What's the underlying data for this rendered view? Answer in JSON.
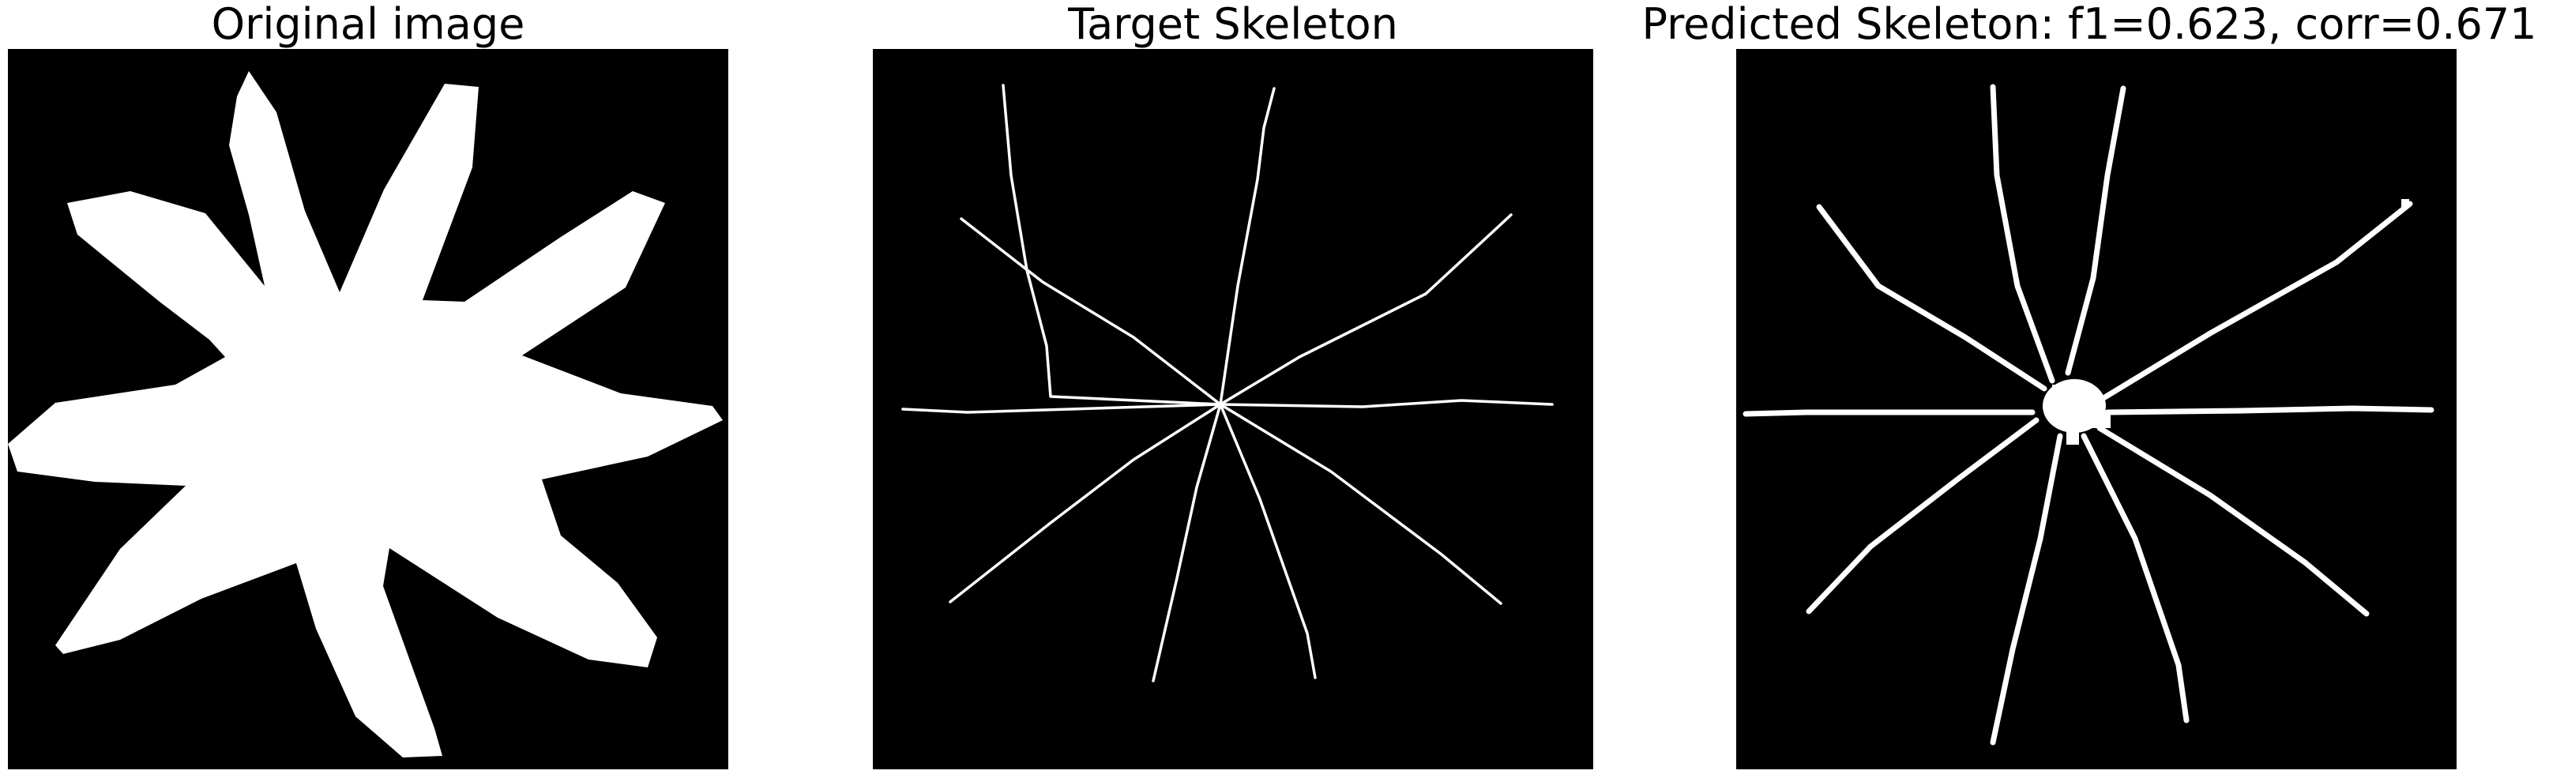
{
  "panels": [
    {
      "title": "Original image"
    },
    {
      "title": "Target Skeleton"
    },
    {
      "title": "Predicted Skeleton: f1=0.623, corr=0.671"
    }
  ],
  "colors": {
    "background": "#000000",
    "foreground": "#ffffff",
    "page": "#ffffff"
  }
}
